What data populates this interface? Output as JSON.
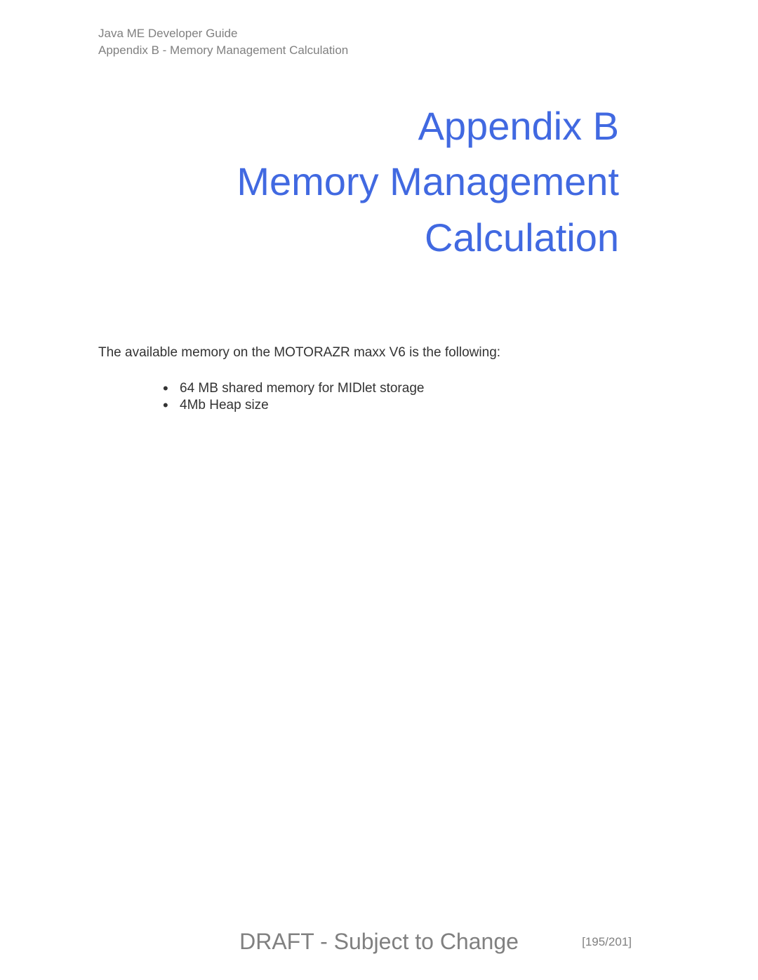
{
  "header": {
    "line1": "Java ME Developer Guide",
    "line2": "Appendix B - Memory Management Calculation"
  },
  "title": {
    "line1": "Appendix B",
    "line2": "Memory Management",
    "line3": "Calculation"
  },
  "intro": "The available memory on the MOTORAZR maxx V6 is the following:",
  "bullets": {
    "item1": "64 MB shared memory for MIDlet storage",
    "item2": "4Mb Heap size"
  },
  "footer": {
    "draft": "DRAFT - Subject to Change",
    "page": "[195/201]"
  },
  "colors": {
    "title_color": "#4169e1",
    "header_gray": "#808080",
    "body_text": "#333333",
    "background": "#ffffff"
  },
  "typography": {
    "header_fontsize": 17,
    "title_fontsize": 56,
    "body_fontsize": 19,
    "footer_draft_fontsize": 32,
    "footer_page_fontsize": 17,
    "font_family": "Verdana"
  }
}
